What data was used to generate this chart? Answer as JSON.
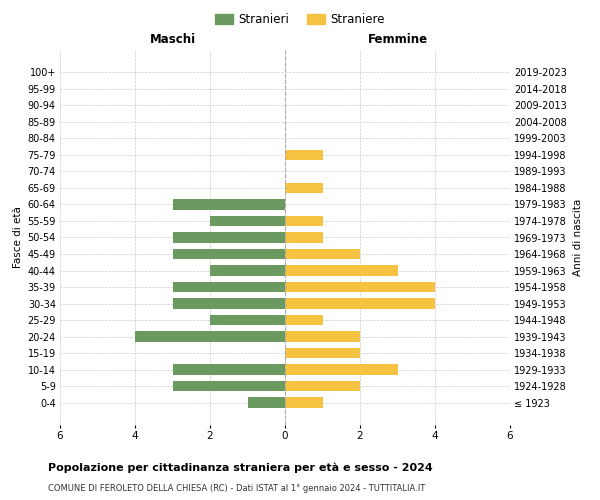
{
  "age_groups": [
    "100+",
    "95-99",
    "90-94",
    "85-89",
    "80-84",
    "75-79",
    "70-74",
    "65-69",
    "60-64",
    "55-59",
    "50-54",
    "45-49",
    "40-44",
    "35-39",
    "30-34",
    "25-29",
    "20-24",
    "15-19",
    "10-14",
    "5-9",
    "0-4"
  ],
  "birth_years": [
    "≤ 1923",
    "1924-1928",
    "1929-1933",
    "1934-1938",
    "1939-1943",
    "1944-1948",
    "1949-1953",
    "1954-1958",
    "1959-1963",
    "1964-1968",
    "1969-1973",
    "1974-1978",
    "1979-1983",
    "1984-1988",
    "1989-1993",
    "1994-1998",
    "1999-2003",
    "2004-2008",
    "2009-2013",
    "2014-2018",
    "2019-2023"
  ],
  "males": [
    0,
    0,
    0,
    0,
    0,
    0,
    0,
    0,
    3,
    2,
    3,
    3,
    2,
    3,
    3,
    2,
    4,
    0,
    3,
    3,
    1
  ],
  "females": [
    0,
    0,
    0,
    0,
    0,
    1,
    0,
    1,
    0,
    1,
    1,
    2,
    3,
    4,
    4,
    1,
    2,
    2,
    3,
    2,
    1
  ],
  "male_color": "#6a9a5f",
  "female_color": "#f5c242",
  "grid_color": "#cccccc",
  "title": "Popolazione per cittadinanza straniera per età e sesso - 2024",
  "subtitle": "COMUNE DI FEROLETO DELLA CHIESA (RC) - Dati ISTAT al 1° gennaio 2024 - TUTTITALIA.IT",
  "xlabel_left": "Maschi",
  "xlabel_right": "Femmine",
  "ylabel_left": "Fasce di età",
  "ylabel_right": "Anni di nascita",
  "legend_male": "Stranieri",
  "legend_female": "Straniere",
  "xlim": 6
}
